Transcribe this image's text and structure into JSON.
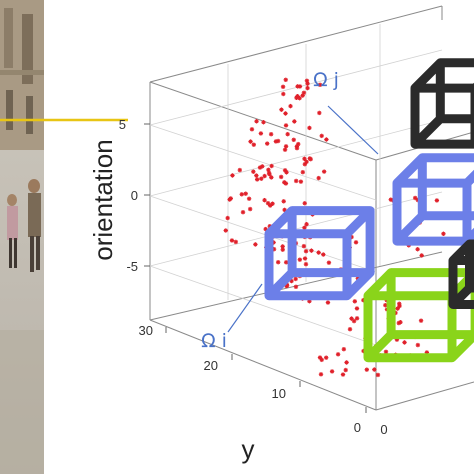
{
  "chart_data": {
    "type": "scatter",
    "projection": "3d",
    "axes": {
      "y": {
        "label": "y",
        "ticks": [
          "0",
          "10",
          "20",
          "30"
        ],
        "range": [
          0,
          30
        ]
      },
      "orientation": {
        "label": "orientation",
        "ticks": [
          "5",
          "0",
          "-5"
        ],
        "range": [
          -8,
          8
        ]
      },
      "x": {
        "ticks": [
          "0"
        ]
      }
    },
    "annotations": [
      {
        "label": "Ω j",
        "color": "#4a72c8"
      },
      {
        "label": "Ω i",
        "color": "#4a72c8"
      }
    ],
    "cubes": [
      {
        "name": "cube-black-top",
        "color": "#2b2b2b"
      },
      {
        "name": "cube-blue-omega-j",
        "color": "#6c7fe8"
      },
      {
        "name": "cube-blue-omega-i",
        "color": "#6c7fe8"
      },
      {
        "name": "cube-green",
        "color": "#8ad41a"
      },
      {
        "name": "cube-black-right",
        "color": "#2b2b2b"
      }
    ],
    "marker_color": "#e0202a",
    "grid": true
  },
  "photo": {
    "guide_line_color": "#e8c514"
  }
}
